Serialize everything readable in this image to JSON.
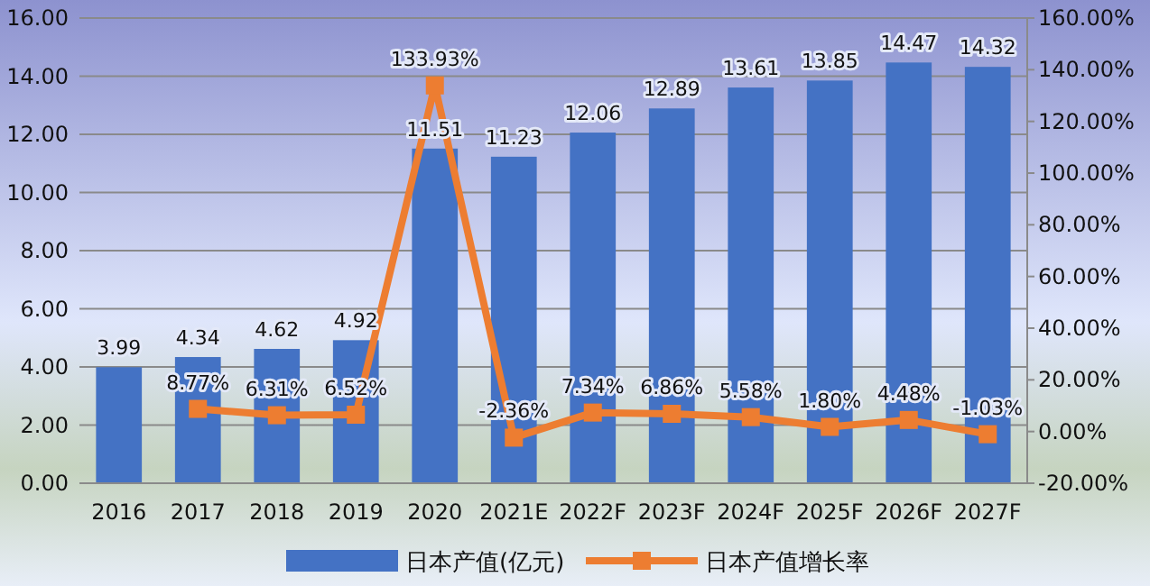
{
  "chart_data": {
    "type": "bar",
    "categories": [
      "2016",
      "2017",
      "2018",
      "2019",
      "2020",
      "2021E",
      "2022F",
      "2023F",
      "2024F",
      "2025F",
      "2026F",
      "2027F"
    ],
    "series": [
      {
        "name": "日本产值(亿元)",
        "color": "#4472c4",
        "values": [
          3.99,
          4.34,
          4.62,
          4.92,
          11.51,
          11.23,
          12.06,
          12.89,
          13.61,
          13.85,
          14.47,
          14.32
        ],
        "value_labels": [
          "3.99",
          "4.34",
          "4.62",
          "4.92",
          "11.51",
          "11.23",
          "12.06",
          "12.89",
          "13.61",
          "13.85",
          "14.47",
          "14.32"
        ]
      },
      {
        "name": "日本产值增长率",
        "type": "line",
        "axis": "y2",
        "color": "#ed7d31",
        "marker": "square",
        "values": [
          null,
          8.77,
          6.31,
          6.52,
          133.93,
          -2.36,
          7.34,
          6.86,
          5.58,
          1.8,
          4.48,
          -1.03
        ],
        "value_labels": [
          null,
          "8.77%",
          "6.31%",
          "6.52%",
          "133.93%",
          "-2.36%",
          "7.34%",
          "6.86%",
          "5.58%",
          "1.80%",
          "4.48%",
          "-1.03%"
        ]
      }
    ],
    "ylim": [
      0,
      16
    ],
    "yticks": [
      {
        "value": 0,
        "label": "0.00"
      },
      {
        "value": 2,
        "label": "2.00"
      },
      {
        "value": 4,
        "label": "4.00"
      },
      {
        "value": 6,
        "label": "6.00"
      },
      {
        "value": 8,
        "label": "8.00"
      },
      {
        "value": 10,
        "label": "10.00"
      },
      {
        "value": 12,
        "label": "12.00"
      },
      {
        "value": 14,
        "label": "14.00"
      },
      {
        "value": 16,
        "label": "16.00"
      }
    ],
    "y2lim": [
      -20,
      160
    ],
    "y2ticks": [
      {
        "value": -20,
        "label": "-20.00%"
      },
      {
        "value": 0,
        "label": "0.00%"
      },
      {
        "value": 20,
        "label": "20.00%"
      },
      {
        "value": 40,
        "label": "40.00%"
      },
      {
        "value": 60,
        "label": "60.00%"
      },
      {
        "value": 80,
        "label": "80.00%"
      },
      {
        "value": 100,
        "label": "100.00%"
      },
      {
        "value": 120,
        "label": "120.00%"
      },
      {
        "value": 140,
        "label": "140.00%"
      },
      {
        "value": 160,
        "label": "160.00%"
      }
    ],
    "grid": "y",
    "legend": "bottom"
  }
}
